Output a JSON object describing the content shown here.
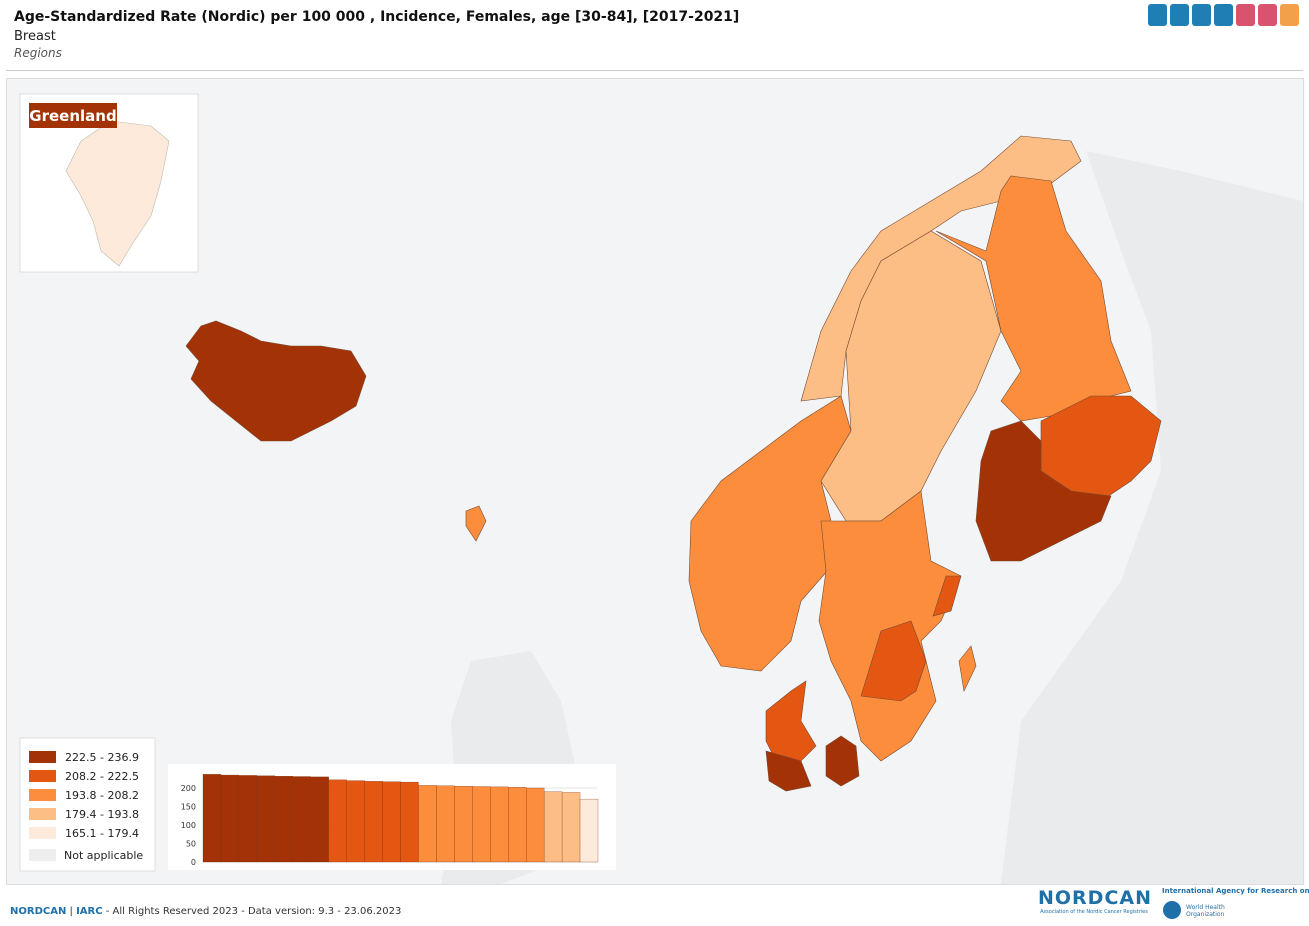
{
  "header": {
    "title": "Age-Standardized Rate (Nordic) per 100 000 , Incidence, Females, age [30-84], [2017-2021]",
    "subtitle": "Breast",
    "regions_label": "Regions"
  },
  "inset": {
    "label": "Greenland"
  },
  "legend": {
    "items": [
      {
        "label": "222.5 - 236.9",
        "color": "#a33306"
      },
      {
        "label": "208.2 - 222.5",
        "color": "#e35713"
      },
      {
        "label": "193.8 - 208.2",
        "color": "#fb8d3d"
      },
      {
        "label": "179.4 - 193.8",
        "color": "#fdbe85"
      },
      {
        "label": "165.1 - 179.4",
        "color": "#feeadb"
      }
    ],
    "not_applicable": {
      "label": "Not applicable",
      "color": "#eeeeee"
    }
  },
  "chart_data": {
    "type": "bar",
    "values": [
      236.9,
      235,
      234,
      233,
      232,
      231,
      230,
      222,
      220,
      218,
      217,
      216,
      207,
      206,
      205,
      204,
      203,
      202,
      200,
      190,
      188,
      170
    ],
    "colors": [
      "#a33306",
      "#a33306",
      "#a33306",
      "#a33306",
      "#a33306",
      "#a33306",
      "#a33306",
      "#e35713",
      "#e35713",
      "#e35713",
      "#e35713",
      "#e35713",
      "#fb8d3d",
      "#fb8d3d",
      "#fb8d3d",
      "#fb8d3d",
      "#fb8d3d",
      "#fb8d3d",
      "#fb8d3d",
      "#fdbe85",
      "#fdbe85",
      "#feeadb"
    ],
    "ylim": [
      0,
      250
    ],
    "yticks": [
      0,
      50,
      100,
      150,
      200
    ],
    "grid": true
  },
  "footer": {
    "brand": "NORDCAN",
    "iarc": "IARC",
    "text": "- All Rights Reserved 2023 - Data version: 9.3 - 23.06.2023"
  },
  "logos": {
    "nordcan": "NORDCAN",
    "nordcan_sub": "Association of the Nordic Cancer Registries",
    "iarc": "International Agency for Research on Cancer",
    "who_1": "World Health",
    "who_2": "Organization"
  }
}
